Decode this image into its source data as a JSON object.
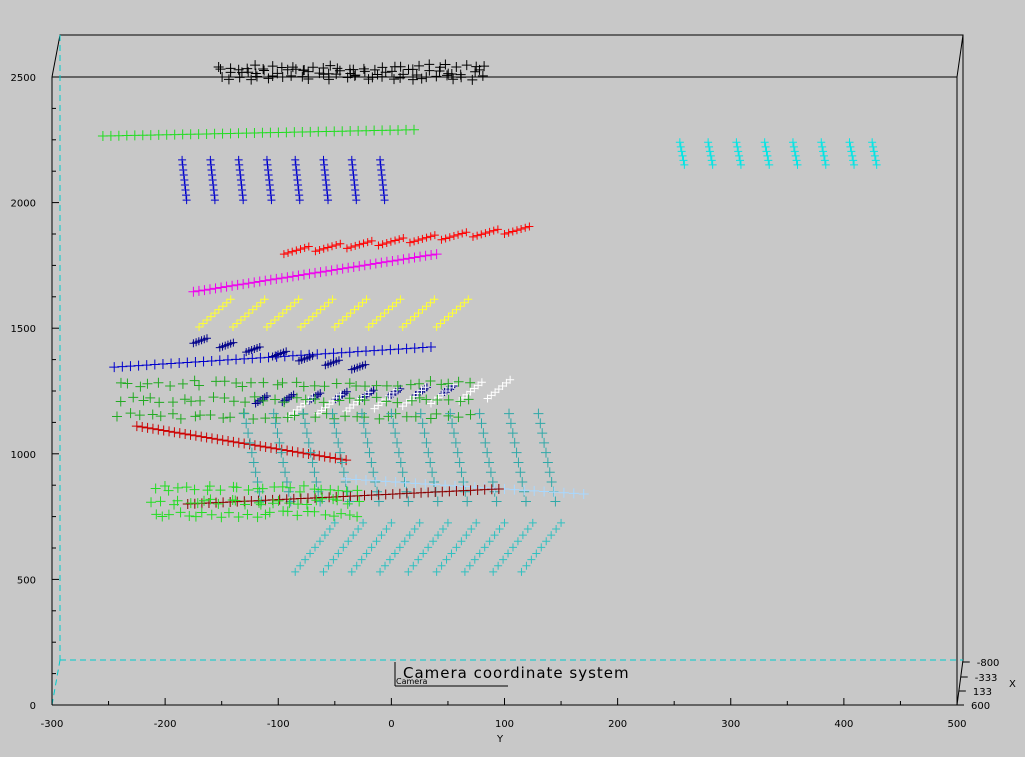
{
  "chart_data": {
    "type": "scatter",
    "title": "Camera  coordinate  system",
    "camera_label": "Camera",
    "xlabel": "Y",
    "depth_label": "X",
    "xlim": [
      -300,
      500
    ],
    "ylim": [
      0,
      2600
    ],
    "x_ticks": [
      "-300",
      "-200",
      "-100",
      "0",
      "100",
      "200",
      "300",
      "400",
      "500"
    ],
    "y_ticks": [
      "0",
      "500",
      "1000",
      "1500",
      "2000",
      "2500"
    ],
    "depth_ticks": [
      "-800",
      "-333",
      "133",
      "600"
    ],
    "grid": false,
    "series": [
      {
        "color": "#000000",
        "kind": "band",
        "x0": -150,
        "x1": 80,
        "y0": 2500,
        "y1": 2540,
        "rows": 3,
        "n": 30
      },
      {
        "color": "#22dd22",
        "kind": "line",
        "x0": -255,
        "x1": 20,
        "y0": 2265,
        "y1": 2290,
        "n": 40
      },
      {
        "color": "#0000cc",
        "kind": "columns",
        "xs": [
          -185,
          -160,
          -135,
          -110,
          -85,
          -60,
          -35,
          -10
        ],
        "ytop": 2170,
        "ybot": 2010,
        "n": 9
      },
      {
        "color": "#00e5e5",
        "kind": "columns",
        "xs": [
          255,
          280,
          305,
          330,
          355,
          380,
          405,
          425
        ],
        "ytop": 2240,
        "ybot": 2150,
        "n": 6
      },
      {
        "color": "#ff0000",
        "kind": "segments",
        "x0": -95,
        "x1": 100,
        "y0": 1795,
        "y1": 1875,
        "nseg": 8,
        "seglen": 22,
        "rise": 30,
        "n": 7
      },
      {
        "color": "#ee00ee",
        "kind": "line",
        "x0": -175,
        "x1": 40,
        "y0": 1645,
        "y1": 1795,
        "n": 45
      },
      {
        "color": "#ffff33",
        "kind": "segments",
        "x0": -170,
        "x1": 40,
        "y0": 1505,
        "y1": 1505,
        "nseg": 8,
        "seglen": 28,
        "rise": 110,
        "n": 9
      },
      {
        "color": "#0000cc",
        "kind": "line",
        "x0": -245,
        "x1": 35,
        "y0": 1345,
        "y1": 1425,
        "n": 40
      },
      {
        "color": "#00008b",
        "kind": "segments",
        "x0": -175,
        "x1": -35,
        "y0": 1440,
        "y1": 1335,
        "nseg": 7,
        "seglen": 12,
        "rise": 20,
        "n": 6
      },
      {
        "color": "#00008b",
        "kind": "segments",
        "x0": -120,
        "x1": 45,
        "y0": 1200,
        "y1": 1240,
        "nseg": 8,
        "seglen": 10,
        "rise": 30,
        "n": 6
      },
      {
        "color": "#ffffff",
        "kind": "segments",
        "x0": -90,
        "x1": 85,
        "y0": 1150,
        "y1": 1220,
        "nseg": 8,
        "seglen": 20,
        "rise": 75,
        "n": 7
      },
      {
        "color": "#22aa22",
        "kind": "band",
        "x0": -240,
        "x1": 70,
        "y0": 1150,
        "y1": 1280,
        "rows": 3,
        "n": 35
      },
      {
        "color": "#cc0000",
        "kind": "line",
        "x0": -225,
        "x1": -40,
        "y0": 1110,
        "y1": 975,
        "n": 40
      },
      {
        "color": "#30a8a8",
        "kind": "grid",
        "x0": -130,
        "x1": 130,
        "ytop": 1160,
        "ybot": 810,
        "cols": 11,
        "n": 10,
        "slant": 15
      },
      {
        "color": "#a8d8ff",
        "kind": "line",
        "x0": -40,
        "x1": 170,
        "y0": 900,
        "y1": 840,
        "n": 25
      },
      {
        "color": "#8b0000",
        "kind": "line",
        "x0": -180,
        "x1": 95,
        "y0": 800,
        "y1": 860,
        "n": 45
      },
      {
        "color": "#22dd22",
        "kind": "band",
        "x0": -210,
        "x1": -30,
        "y0": 760,
        "y1": 860,
        "rows": 3,
        "n": 25
      },
      {
        "color": "#30c0c0",
        "kind": "segments",
        "x0": -85,
        "x1": 115,
        "y0": 530,
        "y1": 530,
        "nseg": 9,
        "seglen": 35,
        "rise": 195,
        "n": 9
      }
    ]
  }
}
